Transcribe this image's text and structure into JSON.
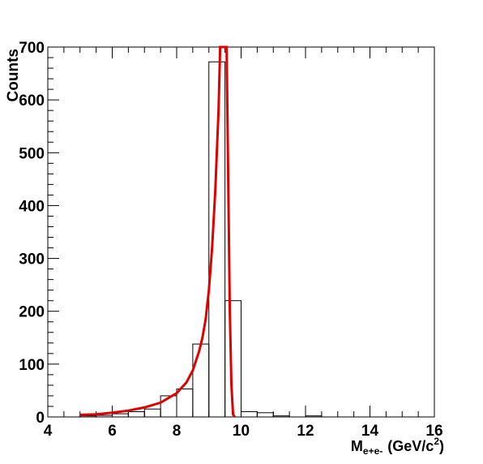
{
  "chart_data": {
    "type": "bar",
    "ylabel": "Counts",
    "xlabel_main": "M",
    "xlabel_sub": "e+e-",
    "xlabel_unit": "(GeV/c",
    "xlabel_sup": "2",
    "xlabel_close": ")",
    "xlim": [
      4,
      16
    ],
    "ylim": [
      0,
      700
    ],
    "xticks": [
      4,
      6,
      8,
      10,
      12,
      14,
      16
    ],
    "yticks": [
      0,
      100,
      200,
      300,
      400,
      500,
      600,
      700
    ],
    "bin_width": 0.5,
    "bins": [
      {
        "x0": 5.0,
        "value": 2
      },
      {
        "x0": 5.5,
        "value": 3
      },
      {
        "x0": 6.0,
        "value": 6
      },
      {
        "x0": 6.5,
        "value": 10
      },
      {
        "x0": 7.0,
        "value": 15
      },
      {
        "x0": 7.5,
        "value": 40
      },
      {
        "x0": 8.0,
        "value": 53
      },
      {
        "x0": 8.5,
        "value": 138
      },
      {
        "x0": 9.0,
        "value": 672
      },
      {
        "x0": 9.5,
        "value": 220
      },
      {
        "x0": 10.0,
        "value": 10
      },
      {
        "x0": 10.5,
        "value": 8
      },
      {
        "x0": 11.0,
        "value": 2
      },
      {
        "x0": 11.5,
        "value": 0
      },
      {
        "x0": 12.0,
        "value": 2
      },
      {
        "x0": 12.5,
        "value": 0
      }
    ],
    "fit_curve": {
      "color": "#e00000",
      "points": [
        [
          5.0,
          4
        ],
        [
          5.5,
          5
        ],
        [
          6.0,
          8
        ],
        [
          6.5,
          12
        ],
        [
          7.0,
          18
        ],
        [
          7.5,
          27
        ],
        [
          8.0,
          45
        ],
        [
          8.3,
          65
        ],
        [
          8.5,
          88
        ],
        [
          8.7,
          125
        ],
        [
          8.8,
          150
        ],
        [
          8.9,
          185
        ],
        [
          9.0,
          240
        ],
        [
          9.1,
          320
        ],
        [
          9.2,
          430
        ],
        [
          9.3,
          580
        ],
        [
          9.35,
          700
        ],
        [
          9.55,
          700
        ],
        [
          9.6,
          450
        ],
        [
          9.65,
          200
        ],
        [
          9.7,
          60
        ],
        [
          9.75,
          5
        ],
        [
          9.8,
          0
        ]
      ]
    }
  }
}
